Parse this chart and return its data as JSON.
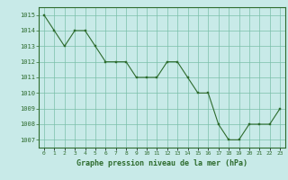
{
  "x": [
    0,
    1,
    2,
    3,
    4,
    5,
    6,
    7,
    8,
    9,
    10,
    11,
    12,
    13,
    14,
    15,
    16,
    17,
    18,
    19,
    20,
    21,
    22,
    23
  ],
  "y": [
    1015,
    1014,
    1013,
    1014,
    1014,
    1013,
    1012,
    1012,
    1012,
    1011,
    1011,
    1011,
    1012,
    1012,
    1011,
    1010,
    1010,
    1008,
    1007,
    1007,
    1008,
    1008,
    1008,
    1009
  ],
  "line_color": "#2d6b2d",
  "marker_color": "#2d6b2d",
  "bg_color": "#c8eae8",
  "grid_color": "#7bbfaa",
  "xlabel": "Graphe pression niveau de la mer (hPa)",
  "xlabel_color": "#2d6b2d",
  "tick_color": "#2d6b2d",
  "ylim_min": 1006.5,
  "ylim_max": 1015.5,
  "xlim_min": -0.5,
  "xlim_max": 23.5,
  "ytick_min": 1007,
  "ytick_max": 1015,
  "xtick_labels": [
    "0",
    "1",
    "2",
    "3",
    "4",
    "5",
    "6",
    "7",
    "8",
    "9",
    "10",
    "11",
    "12",
    "13",
    "14",
    "15",
    "16",
    "17",
    "18",
    "19",
    "20",
    "21",
    "22",
    "23"
  ]
}
